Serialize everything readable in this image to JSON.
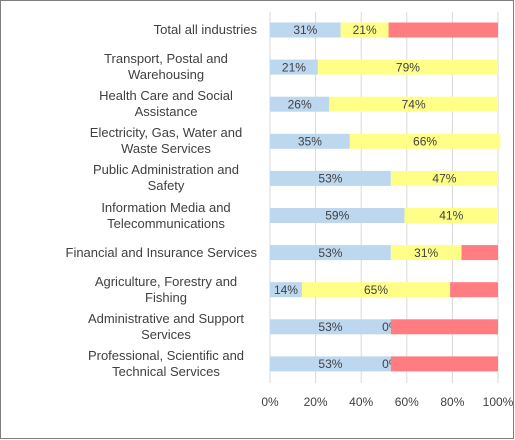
{
  "chart_data": {
    "type": "stacked_barh",
    "categories": [
      "Total all industries",
      "Transport, Postal and Warehousing",
      "Health Care and Social Assistance",
      "Electricity, Gas, Water and Waste Services",
      "Public Administration and Safety",
      "Information Media and Telecommunications",
      "Financial and Insurance Services",
      "Agriculture, Forestry and Fishing",
      "Administrative and Support Services",
      "Professional, Scientific and Technical Services"
    ],
    "series": [
      {
        "color": "#bdd7ee",
        "values": [
          31,
          21,
          26,
          35,
          53,
          59,
          53,
          14,
          53,
          53
        ],
        "value_labels": [
          "31%",
          "21%",
          "26%",
          "35%",
          "53%",
          "59%",
          "53%",
          "14%",
          "53%",
          "53%"
        ]
      },
      {
        "color": "#ffff88",
        "values": [
          21,
          79,
          74,
          66,
          47,
          41,
          31,
          65,
          0,
          0
        ],
        "value_labels": [
          "21%",
          "79%",
          "74%",
          "66%",
          "47%",
          "41%",
          "31%",
          "65%",
          "0%",
          "0%"
        ]
      },
      {
        "color": "#ff7c80",
        "values": [
          48,
          0,
          0,
          0,
          0,
          0,
          16,
          21,
          47,
          47
        ]
      }
    ],
    "xlim": [
      0,
      100
    ],
    "xticks": [
      {
        "value": 0,
        "label": "0%"
      },
      {
        "value": 20,
        "label": "20%"
      },
      {
        "value": 40,
        "label": "40%"
      },
      {
        "value": 60,
        "label": "60%"
      },
      {
        "value": 80,
        "label": "80%"
      },
      {
        "value": 100,
        "label": "100%"
      }
    ],
    "grid": true
  }
}
